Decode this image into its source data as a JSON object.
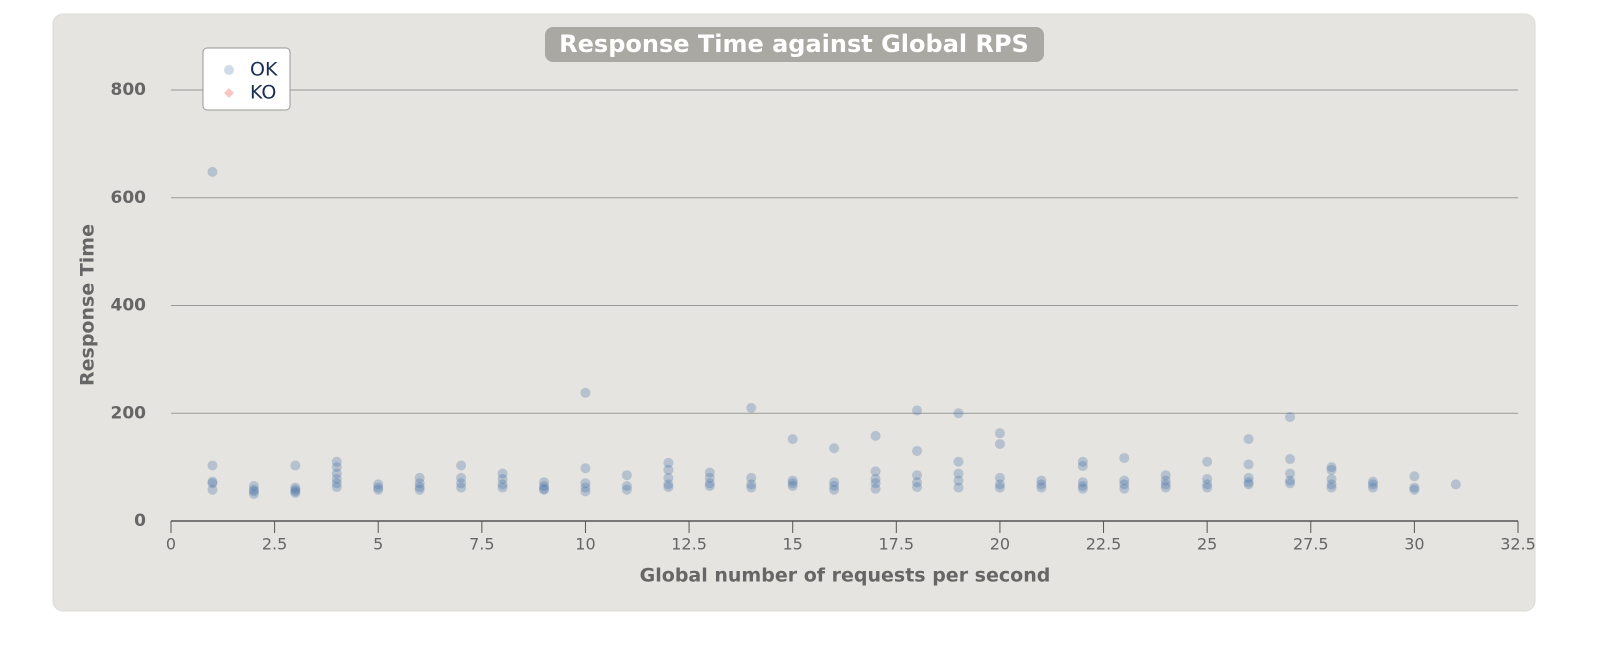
{
  "chart_data": {
    "type": "scatter",
    "title": "Response Time against Global RPS",
    "x_label": "Global number of requests per second",
    "y_label": "Response Time",
    "xlim": [
      0,
      32.5
    ],
    "xticks": [
      0,
      2.5,
      5,
      7.5,
      10,
      12.5,
      15,
      17.5,
      20,
      22.5,
      25,
      27.5,
      30,
      32.5
    ],
    "ylim": [
      0,
      800
    ],
    "yticks": [
      0,
      200,
      400,
      600,
      800
    ],
    "grid": true,
    "legend": "top-left",
    "series": [
      {
        "name": "OK",
        "color": "#4572a7",
        "x": [
          1,
          1,
          1,
          1,
          1,
          2,
          2,
          2,
          2,
          3,
          3,
          3,
          3,
          3,
          4,
          4,
          4,
          4,
          4,
          4,
          5,
          5,
          5,
          6,
          6,
          6,
          6,
          7,
          7,
          7,
          7,
          8,
          8,
          8,
          8,
          9,
          9,
          9,
          9,
          10,
          10,
          10,
          10,
          10,
          11,
          11,
          11,
          12,
          12,
          12,
          12,
          12,
          13,
          13,
          13,
          13,
          14,
          14,
          14,
          14,
          15,
          15,
          15,
          15,
          16,
          16,
          16,
          16,
          17,
          17,
          17,
          17,
          17,
          18,
          18,
          18,
          18,
          18,
          19,
          19,
          19,
          19,
          19,
          20,
          20,
          20,
          20,
          20,
          21,
          21,
          21,
          22,
          22,
          22,
          22,
          22,
          23,
          23,
          23,
          23,
          24,
          24,
          24,
          24,
          25,
          25,
          25,
          25,
          26,
          26,
          26,
          26,
          26,
          27,
          27,
          27,
          27,
          27,
          28,
          28,
          28,
          28,
          28,
          29,
          29,
          29,
          30,
          30,
          30,
          31
        ],
        "values": [
          648,
          103,
          73,
          70,
          58,
          65,
          58,
          55,
          50,
          103,
          62,
          58,
          55,
          52,
          110,
          100,
          88,
          78,
          70,
          63,
          68,
          62,
          58,
          80,
          70,
          63,
          58,
          103,
          80,
          70,
          62,
          88,
          78,
          68,
          62,
          72,
          65,
          60,
          58,
          238,
          98,
          70,
          62,
          55,
          85,
          65,
          58,
          108,
          95,
          80,
          68,
          63,
          90,
          80,
          70,
          65,
          210,
          80,
          68,
          62,
          152,
          75,
          70,
          65,
          135,
          72,
          65,
          58,
          158,
          92,
          78,
          70,
          60,
          205,
          130,
          85,
          72,
          63,
          200,
          110,
          88,
          75,
          62,
          163,
          143,
          80,
          68,
          62,
          75,
          68,
          62,
          110,
          102,
          72,
          65,
          60,
          117,
          75,
          68,
          60,
          85,
          75,
          68,
          62,
          110,
          78,
          68,
          62,
          152,
          105,
          80,
          72,
          68,
          193,
          115,
          88,
          75,
          70,
          100,
          95,
          78,
          68,
          62,
          73,
          68,
          62,
          83,
          62,
          58,
          68
        ]
      },
      {
        "name": "KO",
        "color": "#f15b4f",
        "x": [],
        "values": []
      }
    ]
  }
}
